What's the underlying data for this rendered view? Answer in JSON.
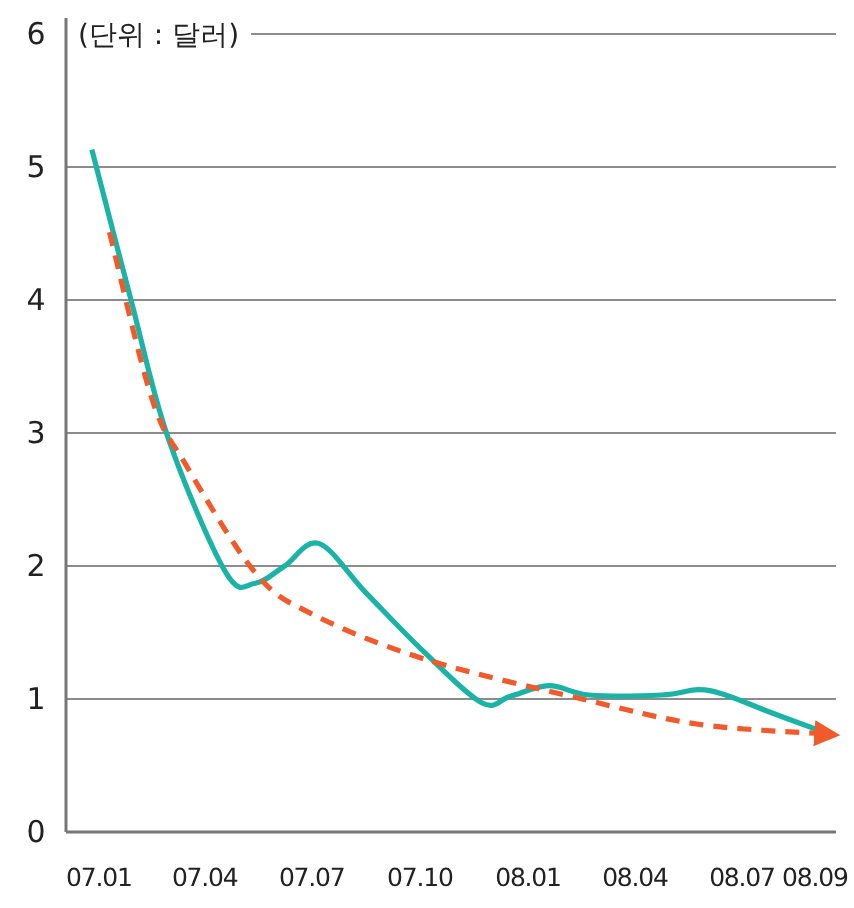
{
  "chart_data": {
    "type": "line",
    "ylabel": "(단위 : 달러)",
    "xlim": [
      "2006-12-04",
      "2008-09-19"
    ],
    "xticks": [
      {
        "value": "2007-01",
        "label": "07.01"
      },
      {
        "value": "2007-04",
        "label": "07.04"
      },
      {
        "value": "2007-07",
        "label": "07.07"
      },
      {
        "value": "2007-10",
        "label": "07.10"
      },
      {
        "value": "2008-01",
        "label": "08.01"
      },
      {
        "value": "2008-04",
        "label": "08.04"
      },
      {
        "value": "2008-07",
        "label": "08.07"
      },
      {
        "value": "2008-09",
        "label": "08.09"
      }
    ],
    "ylim": [
      0,
      6
    ],
    "yticks": [
      0,
      1,
      2,
      3,
      4,
      5,
      6
    ],
    "grid": "y",
    "series": [
      {
        "color": "#1ab3a6",
        "line_style": "solid",
        "x": [
          "2006-12-26",
          "2007-01-28",
          "2007-03-01",
          "2007-04-19",
          "2007-05-14",
          "2007-06-08",
          "2007-07-07",
          "2007-08-16",
          "2007-10-05",
          "2007-11-23",
          "2007-12-17",
          "2008-01-19",
          "2008-02-22",
          "2008-04-24",
          "2008-05-25",
          "2008-06-17",
          "2008-07-25",
          "2008-09-03"
        ],
        "values": [
          5.13,
          4.01,
          2.96,
          1.95,
          1.87,
          2.0,
          2.17,
          1.8,
          1.35,
          0.97,
          1.02,
          1.1,
          1.03,
          1.03,
          1.07,
          1.03,
          0.9,
          0.77
        ]
      },
      {
        "color": "#f15a2b",
        "line_style": "dashed",
        "x": [
          "2007-01-10",
          "2007-02-15",
          "2007-03-16",
          "2007-05-14",
          "2007-07-01",
          "2007-10-05",
          "2008-02-16",
          "2008-05-25",
          "2008-09-05"
        ],
        "values": [
          4.51,
          3.26,
          2.76,
          1.95,
          1.64,
          1.3,
          1.0,
          0.81,
          0.74
        ]
      }
    ]
  }
}
